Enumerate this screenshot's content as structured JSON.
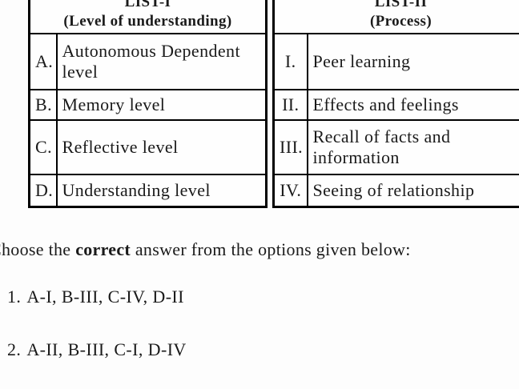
{
  "page": {
    "background_color": "#fdfdfd",
    "text_color": "#1a1a1a",
    "border_color": "#000000"
  },
  "match_table": {
    "list1": {
      "title": "LIST-I",
      "subtitle": "(Level of understanding)",
      "rows": [
        {
          "key": "A.",
          "value": "Autonomous Dependent level"
        },
        {
          "key": "B.",
          "value": "Memory level"
        },
        {
          "key": "C.",
          "value": "Reflective level"
        },
        {
          "key": "D.",
          "value": "Understanding level"
        }
      ]
    },
    "list2": {
      "title": "LIST-II",
      "subtitle": "(Process)",
      "rows": [
        {
          "key": "I.",
          "value": "Peer learning"
        },
        {
          "key": "II.",
          "value": "Effects and feelings"
        },
        {
          "key": "III.",
          "value": "Recall of facts and information"
        },
        {
          "key": "IV.",
          "value": "Seeing of relationship"
        }
      ]
    }
  },
  "question": {
    "prefix": "Choose the ",
    "emphasis": "correct",
    "suffix": " answer from the options given below:"
  },
  "options": [
    {
      "label": "1.",
      "text": "A-I, B-III, C-IV, D-II"
    },
    {
      "label": "2.",
      "text": "A-II, B-III, C-I, D-IV"
    }
  ]
}
